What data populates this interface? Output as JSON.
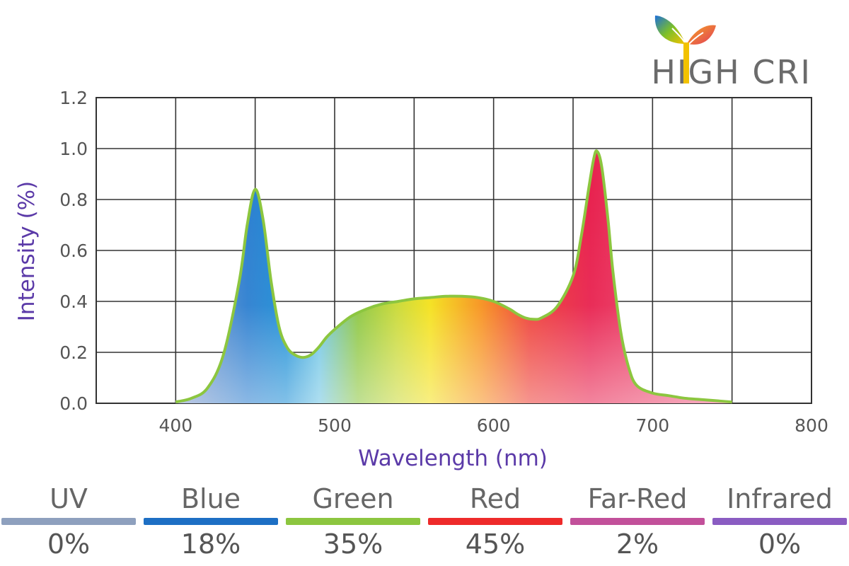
{
  "logo": {
    "text": "HIGH CRI",
    "brand_colors": [
      "#1e6fd9",
      "#7bbf2a",
      "#f2c200",
      "#e23a5a"
    ]
  },
  "chart_data": {
    "type": "area",
    "title": "",
    "xlabel": "Wavelength (nm)",
    "ylabel": "Intensity (%)",
    "xlim": [
      350,
      800
    ],
    "ylim": [
      0,
      1.2
    ],
    "x_ticks": [
      400,
      500,
      600,
      700,
      800
    ],
    "x_tick_labels": [
      "400",
      "500",
      "600",
      "700",
      "800"
    ],
    "y_ticks": [
      0,
      0.2,
      0.4,
      0.6,
      0.8,
      1.0,
      1.2
    ],
    "y_tick_labels": [
      "0.0",
      "0.2",
      "0.4",
      "0.6",
      "0.8",
      "1.0",
      "1.2"
    ],
    "x_gridlines": [
      350,
      400,
      450,
      500,
      550,
      600,
      650,
      700,
      750,
      800
    ],
    "grid": true,
    "series": [
      {
        "name": "Spectrum",
        "line_color": "#8cc63f",
        "x": [
          400,
          410,
          420,
          430,
          440,
          445,
          450,
          455,
          460,
          465,
          470,
          475,
          480,
          485,
          490,
          495,
          500,
          510,
          520,
          530,
          540,
          550,
          560,
          570,
          580,
          590,
          600,
          610,
          615,
          620,
          625,
          630,
          640,
          650,
          655,
          660,
          663,
          665,
          668,
          672,
          675,
          680,
          685,
          690,
          700,
          710,
          720,
          730,
          740,
          750
        ],
        "values": [
          0.005,
          0.02,
          0.06,
          0.19,
          0.48,
          0.7,
          0.84,
          0.72,
          0.48,
          0.3,
          0.22,
          0.19,
          0.18,
          0.19,
          0.22,
          0.26,
          0.29,
          0.34,
          0.37,
          0.39,
          0.4,
          0.41,
          0.415,
          0.42,
          0.42,
          0.415,
          0.4,
          0.37,
          0.35,
          0.335,
          0.33,
          0.335,
          0.38,
          0.5,
          0.65,
          0.85,
          0.96,
          0.99,
          0.93,
          0.72,
          0.52,
          0.28,
          0.14,
          0.07,
          0.04,
          0.03,
          0.02,
          0.015,
          0.01,
          0.005
        ]
      }
    ],
    "gradient_colors": [
      "#8a9bc9",
      "#1d8fd6",
      "#6cc4e4",
      "#8cc63f",
      "#f4e11b",
      "#f7941d",
      "#ee3e36",
      "#e8224f",
      "#f06b8f"
    ]
  },
  "legend": [
    {
      "label": "UV",
      "percent": "0%",
      "color": "#8ea0be"
    },
    {
      "label": "Blue",
      "percent": "18%",
      "color": "#1d6fc4"
    },
    {
      "label": "Green",
      "percent": "35%",
      "color": "#8cc63f"
    },
    {
      "label": "Red",
      "percent": "45%",
      "color": "#ee2a2a"
    },
    {
      "label": "Far-Red",
      "percent": "2%",
      "color": "#c2509a"
    },
    {
      "label": "Infrared",
      "percent": "0%",
      "color": "#8a5cc2"
    }
  ]
}
